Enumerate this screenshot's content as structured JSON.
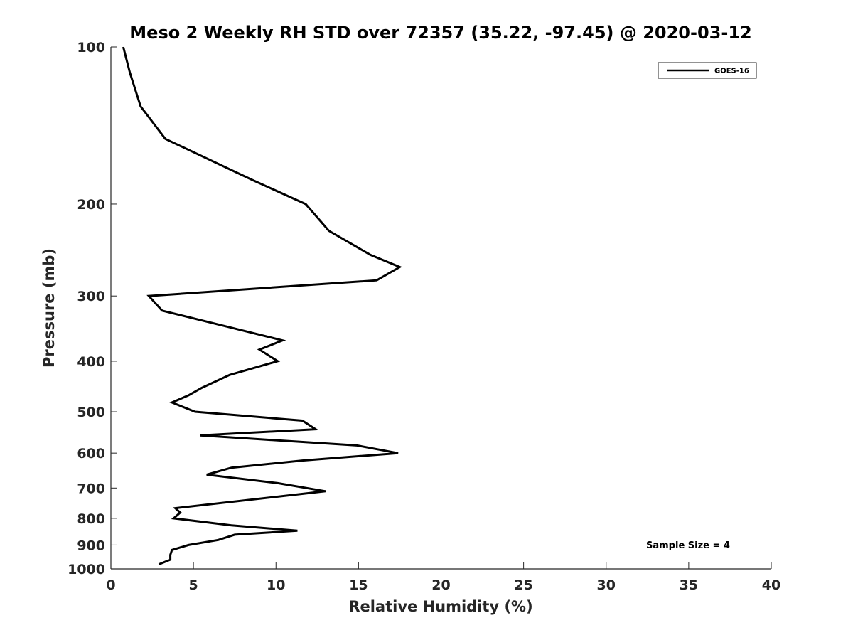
{
  "chart_data": {
    "type": "line",
    "title": "Meso 2 Weekly RH STD over 72357 (35.22, -97.45) @ 2020-03-12",
    "xlabel": "Relative Humidity (%)",
    "ylabel": "Pressure (mb)",
    "xlim": [
      0,
      40
    ],
    "ylim": [
      100,
      1000
    ],
    "yscale": "log",
    "ydirection": "reverse",
    "xticks": [
      0,
      5,
      10,
      15,
      20,
      25,
      30,
      35,
      40
    ],
    "xtick_labels": [
      "0",
      "5",
      "10",
      "15",
      "20",
      "25",
      "30",
      "35",
      "40"
    ],
    "yticks": [
      100,
      200,
      300,
      400,
      500,
      600,
      700,
      800,
      900,
      1000
    ],
    "ytick_labels": [
      "100",
      "200",
      "300",
      "400",
      "500",
      "600",
      "700",
      "800",
      "900",
      "1000"
    ],
    "grid": false,
    "legend_position": "top-right",
    "series": [
      {
        "name": "GOES-16",
        "color": "#000000",
        "x": [
          0.75,
          1.15,
          1.8,
          3.3,
          8.6,
          11.8,
          13.2,
          15.7,
          17.5,
          16.1,
          2.3,
          3.1,
          7.3,
          10.4,
          9.0,
          10.1,
          7.2,
          5.5,
          4.7,
          3.7,
          5.1,
          11.6,
          12.4,
          5.4,
          14.9,
          17.4,
          11.6,
          7.3,
          5.8,
          10.1,
          13.0,
          3.9,
          4.2,
          3.8,
          7.3,
          11.3,
          7.5,
          6.5,
          4.7,
          3.7,
          3.6,
          3.6,
          2.9
        ],
        "y": [
          100,
          112,
          130,
          150,
          180,
          200,
          225,
          250,
          264,
          280,
          300,
          320,
          345,
          365,
          380,
          400,
          425,
          450,
          465,
          480,
          500,
          520,
          540,
          555,
          580,
          600,
          620,
          640,
          660,
          685,
          710,
          765,
          780,
          800,
          825,
          845,
          860,
          880,
          900,
          920,
          940,
          960,
          980
        ]
      }
    ],
    "annotations": [
      "Sample Size = 4"
    ]
  }
}
